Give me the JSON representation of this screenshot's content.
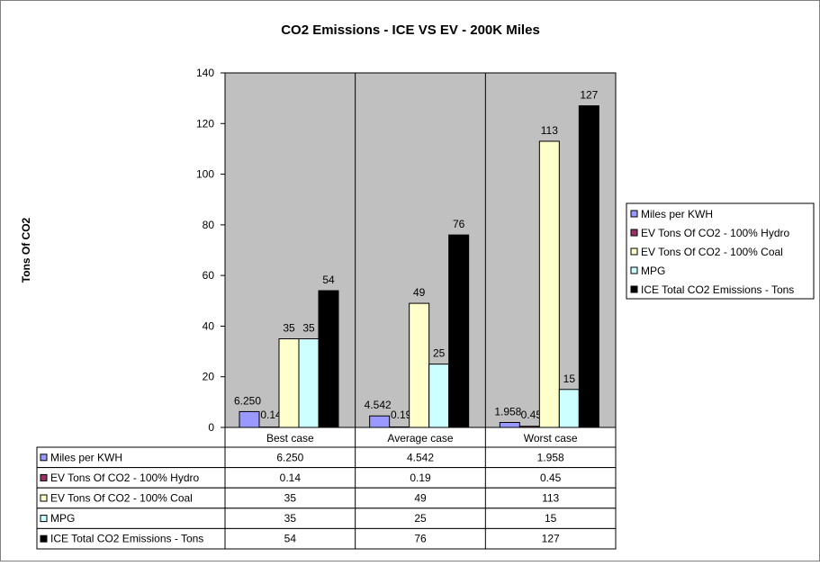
{
  "chart_data": {
    "type": "bar",
    "title": "CO2 Emissions - ICE VS EV - 200K Miles",
    "xlabel": "",
    "ylabel": "Tons Of CO2",
    "ylim": [
      0,
      140
    ],
    "yticks": [
      0,
      20,
      40,
      60,
      80,
      100,
      120,
      140
    ],
    "grid": false,
    "legend_position": "right",
    "categories": [
      "Best case",
      "Average case",
      "Worst case"
    ],
    "series": [
      {
        "name": "Miles per KWH",
        "values": [
          6.25,
          4.542,
          1.958
        ],
        "labels": [
          "6.250",
          "4.542",
          "1.958"
        ],
        "color": "#9999ff"
      },
      {
        "name": "EV Tons Of CO2 - 100% Hydro",
        "values": [
          0.14,
          0.19,
          0.45
        ],
        "labels": [
          "0.14",
          "0.19",
          "0.45"
        ],
        "color": "#993366"
      },
      {
        "name": "EV Tons Of CO2 - 100% Coal",
        "values": [
          35,
          49,
          113
        ],
        "labels": [
          "35",
          "49",
          "113"
        ],
        "color": "#ffffcc"
      },
      {
        "name": "MPG",
        "values": [
          35,
          25,
          15
        ],
        "labels": [
          "35",
          "25",
          "15"
        ],
        "color": "#ccffff"
      },
      {
        "name": "ICE Total CO2 Emissions - Tons",
        "values": [
          54,
          76,
          127
        ],
        "labels": [
          "54",
          "76",
          "127"
        ],
        "color": "#000000"
      }
    ],
    "plot_background": "#c0c0c0"
  }
}
